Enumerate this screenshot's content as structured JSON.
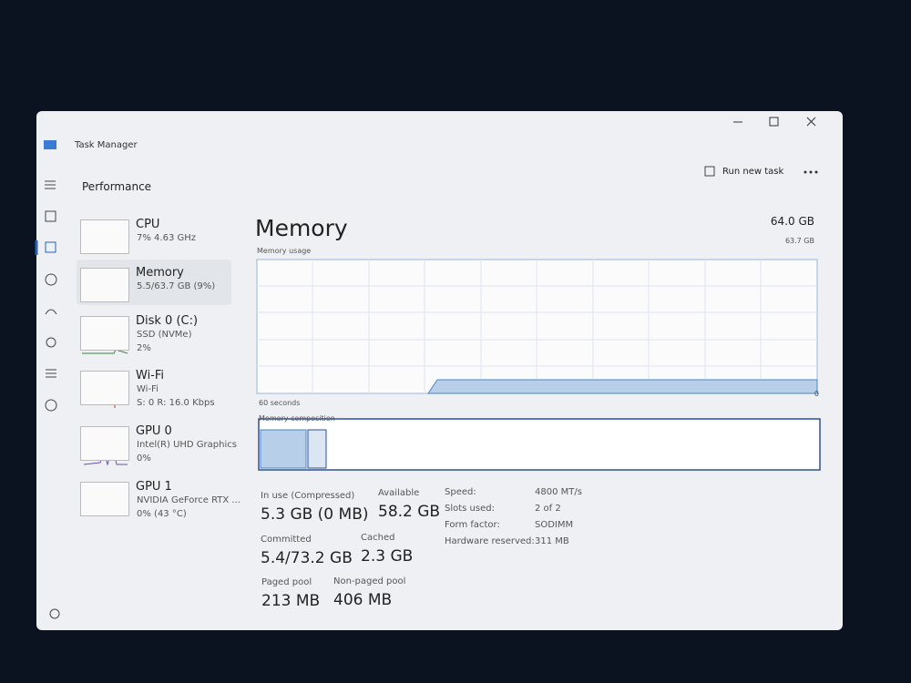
{
  "window": {
    "title": "Task Manager"
  },
  "header": {
    "section": "Performance",
    "run_task": "Run new task"
  },
  "sidebar": [
    {
      "name": "CPU",
      "line1": "7% 4.63 GHz"
    },
    {
      "name": "Memory",
      "line1": "5.5/63.7 GB (9%)"
    },
    {
      "name": "Disk 0 (C:)",
      "line1": "SSD (NVMe)",
      "line2": "2%"
    },
    {
      "name": "Wi-Fi",
      "line1": "Wi-Fi",
      "line2": "S: 0 R: 16.0 Kbps"
    },
    {
      "name": "GPU 0",
      "line1": "Intel(R) UHD Graphics",
      "line2": "0%"
    },
    {
      "name": "GPU 1",
      "line1": "NVIDIA GeForce RTX ...",
      "line2": "0% (43 °C)"
    }
  ],
  "main": {
    "title": "Memory",
    "total": "64.0 GB",
    "usage_label": "Memory usage",
    "usage_max": "63.7 GB",
    "time_label": "60 seconds",
    "zero": "0",
    "composition_label": "Memory composition",
    "stats": [
      {
        "label": "In use (Compressed)",
        "value": "5.3 GB (0 MB)"
      },
      {
        "label": "Available",
        "value": "58.2 GB"
      },
      {
        "label": "Committed",
        "value": "5.4/73.2 GB"
      },
      {
        "label": "Cached",
        "value": "2.3 GB"
      },
      {
        "label": "Paged pool",
        "value": "213 MB"
      },
      {
        "label": "Non-paged pool",
        "value": "406 MB"
      }
    ],
    "details": [
      {
        "label": "Speed:",
        "value": "4800 MT/s"
      },
      {
        "label": "Slots used:",
        "value": "2 of 2"
      },
      {
        "label": "Form factor:",
        "value": "SODIMM"
      },
      {
        "label": "Hardware reserved:",
        "value": "311 MB"
      }
    ]
  }
}
